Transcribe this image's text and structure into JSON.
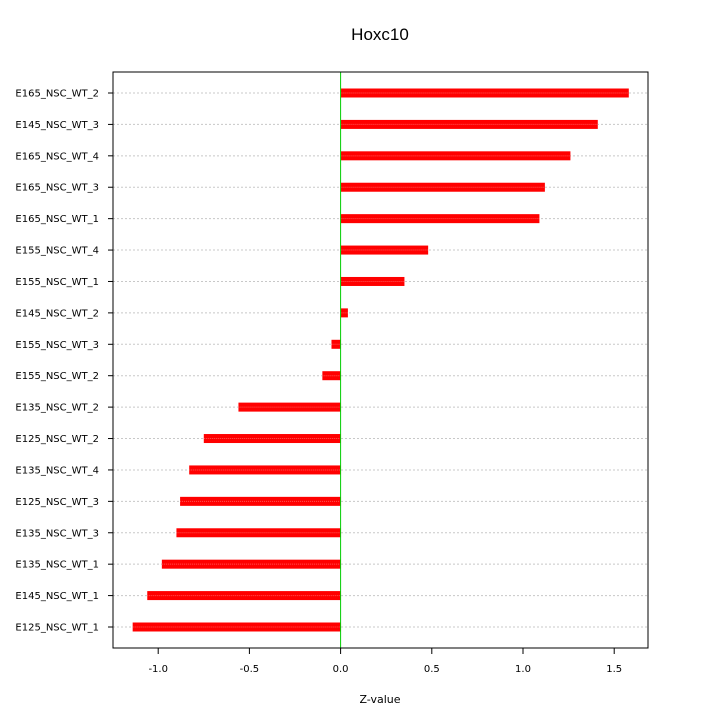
{
  "chart_data": {
    "type": "bar",
    "orientation": "horizontal",
    "title": "Hoxc10",
    "xlabel": "Z-value",
    "ylabel": "",
    "xlim": [
      -1.25,
      1.7
    ],
    "x_ticks": [
      -1.0,
      -0.5,
      0.0,
      0.5,
      1.0,
      1.5
    ],
    "x_tick_labels": [
      "-1.0",
      "-0.5",
      "0.0",
      "0.5",
      "1.0",
      "1.5"
    ],
    "reference_line": 0,
    "grid": "horizontal dotted",
    "categories": [
      "E165_NSC_WT_2",
      "E145_NSC_WT_3",
      "E165_NSC_WT_4",
      "E165_NSC_WT_3",
      "E165_NSC_WT_1",
      "E155_NSC_WT_4",
      "E155_NSC_WT_1",
      "E145_NSC_WT_2",
      "E155_NSC_WT_3",
      "E155_NSC_WT_2",
      "E135_NSC_WT_2",
      "E125_NSC_WT_2",
      "E135_NSC_WT_4",
      "E125_NSC_WT_3",
      "E135_NSC_WT_3",
      "E135_NSC_WT_1",
      "E145_NSC_WT_1",
      "E125_NSC_WT_1"
    ],
    "values": [
      1.58,
      1.41,
      1.26,
      1.12,
      1.09,
      0.48,
      0.35,
      0.04,
      -0.05,
      -0.1,
      -0.56,
      -0.75,
      -0.83,
      -0.88,
      -0.9,
      -0.98,
      -1.06,
      -1.14
    ],
    "colors": {
      "bar": "#ff0000",
      "bar_highlight": "#ff5555",
      "zero_line": "#00cc00",
      "grid": "#c8c8c8",
      "axis": "#000000"
    }
  }
}
